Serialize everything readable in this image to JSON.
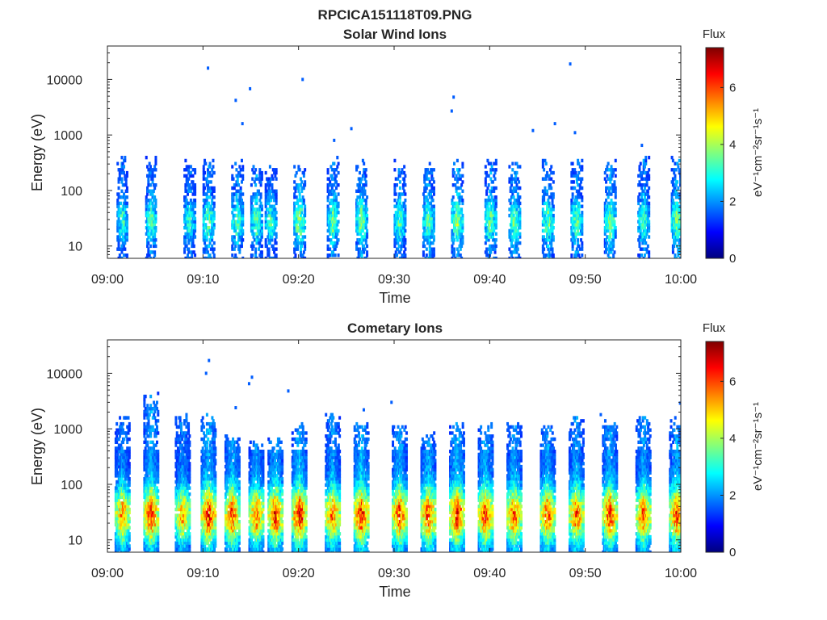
{
  "figure": {
    "file_title": "RPCICA151118T09.PNG"
  },
  "colormap": [
    "#00007f",
    "#0000ff",
    "#007fff",
    "#00ffff",
    "#7fff7f",
    "#ffff00",
    "#ff7f00",
    "#ff0000",
    "#7f0000"
  ],
  "chart_data": [
    {
      "type": "heatmap",
      "title": "Solar Wind Ions",
      "xlabel": "Time",
      "ylabel": "Energy (eV)",
      "x_ticks": [
        "09:00",
        "09:10",
        "09:20",
        "09:30",
        "09:40",
        "09:50",
        "10:00"
      ],
      "xlim_minutes": [
        0,
        60
      ],
      "y_ticks": [
        10,
        100,
        1000,
        10000
      ],
      "y_tick_labels": [
        "10",
        "100",
        "1000",
        "10000"
      ],
      "ylim": [
        6,
        40000
      ],
      "y_scale": "log",
      "colorbar": {
        "label": "Flux",
        "unit": "eV⁻¹cm⁻²sr⁻¹s⁻¹",
        "range": [
          0,
          7.4
        ],
        "ticks": [
          "0",
          "2",
          "4",
          "6"
        ]
      },
      "bursts_minute": [
        1.5,
        4.5,
        8.5,
        10.5,
        13.5,
        15.5,
        17.0,
        20.0,
        23.5,
        26.5,
        30.5,
        33.5,
        36.5,
        40.0,
        42.5,
        46.0,
        49.0,
        52.5,
        56.0,
        59.5
      ],
      "burst_peak_flux": [
        3.2,
        3.4,
        3.1,
        3.6,
        3.5,
        3.5,
        3.3,
        3.9,
        3.6,
        3.7,
        3.4,
        3.6,
        3.8,
        3.6,
        3.6,
        3.6,
        3.5,
        3.6,
        3.4,
        3.8
      ],
      "burst_top_energy_eV": [
        400,
        350,
        300,
        350,
        300,
        300,
        250,
        280,
        400,
        300,
        300,
        300,
        300,
        300,
        300,
        300,
        350,
        300,
        350,
        350
      ],
      "isolated_points": [
        {
          "minute": 10.4,
          "energy": 16000,
          "flux": 1.6
        },
        {
          "minute": 13.3,
          "energy": 4200,
          "flux": 1.6
        },
        {
          "minute": 14.0,
          "energy": 1600,
          "flux": 1.6
        },
        {
          "minute": 14.8,
          "energy": 6800,
          "flux": 1.6
        },
        {
          "minute": 20.3,
          "energy": 10000,
          "flux": 1.6
        },
        {
          "minute": 23.6,
          "energy": 800,
          "flux": 1.6
        },
        {
          "minute": 25.4,
          "energy": 1300,
          "flux": 1.6
        },
        {
          "minute": 35.9,
          "energy": 2700,
          "flux": 1.6
        },
        {
          "minute": 36.1,
          "energy": 4800,
          "flux": 1.6
        },
        {
          "minute": 44.4,
          "energy": 1200,
          "flux": 1.6
        },
        {
          "minute": 46.7,
          "energy": 1600,
          "flux": 1.6
        },
        {
          "minute": 48.3,
          "energy": 19000,
          "flux": 1.6
        },
        {
          "minute": 48.8,
          "energy": 1100,
          "flux": 1.6
        },
        {
          "minute": 55.8,
          "energy": 650,
          "flux": 1.6
        }
      ]
    },
    {
      "type": "heatmap",
      "title": "Cometary Ions",
      "xlabel": "Time",
      "ylabel": "Energy (eV)",
      "x_ticks": [
        "09:00",
        "09:10",
        "09:20",
        "09:30",
        "09:40",
        "09:50",
        "10:00"
      ],
      "xlim_minutes": [
        0,
        60
      ],
      "y_ticks": [
        10,
        100,
        1000,
        10000
      ],
      "y_tick_labels": [
        "10",
        "100",
        "1000",
        "10000"
      ],
      "ylim": [
        6,
        40000
      ],
      "y_scale": "log",
      "colorbar": {
        "label": "Flux",
        "unit": "eV⁻¹cm⁻²sr⁻¹s⁻¹",
        "range": [
          0,
          7.4
        ],
        "ticks": [
          "0",
          "2",
          "4",
          "6"
        ]
      },
      "bursts_minute": [
        1.5,
        4.5,
        7.8,
        10.5,
        13.0,
        15.5,
        17.5,
        20.0,
        23.5,
        26.5,
        30.5,
        33.5,
        36.5,
        39.5,
        42.5,
        46.0,
        49.0,
        52.5,
        56.0,
        59.5
      ],
      "burst_peak_flux": [
        5.6,
        6.2,
        5.4,
        6.4,
        6.1,
        5.8,
        6.2,
        6.5,
        5.8,
        6.4,
        6.2,
        6.1,
        6.5,
        6.2,
        6.0,
        6.0,
        5.9,
        6.2,
        5.9,
        6.1
      ],
      "burst_top_energy_eV": [
        1500,
        3500,
        1500,
        1500,
        700,
        500,
        600,
        1000,
        1500,
        1000,
        1000,
        700,
        1000,
        1000,
        1000,
        1000,
        1300,
        1200,
        1300,
        1300
      ],
      "isolated_points": [
        {
          "minute": 10.2,
          "energy": 10000,
          "flux": 1.6
        },
        {
          "minute": 10.5,
          "energy": 17000,
          "flux": 1.6
        },
        {
          "minute": 13.3,
          "energy": 2400,
          "flux": 1.6
        },
        {
          "minute": 14.7,
          "energy": 6500,
          "flux": 1.6
        },
        {
          "minute": 15.0,
          "energy": 8500,
          "flux": 1.6
        },
        {
          "minute": 18.8,
          "energy": 4800,
          "flux": 1.6
        },
        {
          "minute": 26.7,
          "energy": 2200,
          "flux": 1.6
        },
        {
          "minute": 29.6,
          "energy": 3000,
          "flux": 1.6
        },
        {
          "minute": 51.5,
          "energy": 1800,
          "flux": 1.6
        },
        {
          "minute": 59.8,
          "energy": 2900,
          "flux": 1.6
        }
      ]
    }
  ]
}
